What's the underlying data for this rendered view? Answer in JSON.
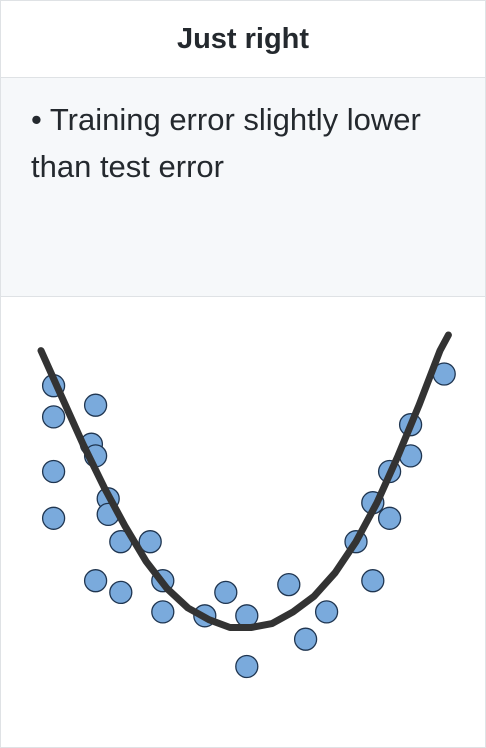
{
  "header": {
    "title": "Just right"
  },
  "description": {
    "bullet": "•",
    "text": "Training error slightly lower than test error"
  },
  "chart_data": {
    "type": "scatter",
    "title": "",
    "xlabel": "",
    "ylabel": "",
    "xlim": [
      0,
      10
    ],
    "ylim": [
      0,
      10
    ],
    "grid": false,
    "legend": "none",
    "point_color": "#7aaadc",
    "point_edge": "#1f3550",
    "curve_color": "#333333",
    "points": [
      {
        "x": 0.3,
        "y": 8.7
      },
      {
        "x": 0.3,
        "y": 7.9
      },
      {
        "x": 0.3,
        "y": 6.5
      },
      {
        "x": 0.3,
        "y": 5.3
      },
      {
        "x": 1.3,
        "y": 8.2
      },
      {
        "x": 1.2,
        "y": 7.2
      },
      {
        "x": 1.3,
        "y": 6.9
      },
      {
        "x": 1.6,
        "y": 5.8
      },
      {
        "x": 1.6,
        "y": 5.4
      },
      {
        "x": 1.3,
        "y": 3.7
      },
      {
        "x": 1.9,
        "y": 4.7
      },
      {
        "x": 1.9,
        "y": 3.4
      },
      {
        "x": 2.6,
        "y": 4.7
      },
      {
        "x": 2.9,
        "y": 3.7
      },
      {
        "x": 2.9,
        "y": 2.9
      },
      {
        "x": 3.9,
        "y": 2.8
      },
      {
        "x": 4.4,
        "y": 3.4
      },
      {
        "x": 4.9,
        "y": 2.8
      },
      {
        "x": 4.9,
        "y": 1.5
      },
      {
        "x": 5.9,
        "y": 3.6
      },
      {
        "x": 6.3,
        "y": 2.2
      },
      {
        "x": 6.8,
        "y": 2.9
      },
      {
        "x": 7.5,
        "y": 4.7
      },
      {
        "x": 7.9,
        "y": 5.7
      },
      {
        "x": 7.9,
        "y": 3.7
      },
      {
        "x": 8.3,
        "y": 6.5
      },
      {
        "x": 8.3,
        "y": 5.3
      },
      {
        "x": 8.8,
        "y": 7.7
      },
      {
        "x": 8.8,
        "y": 6.9
      },
      {
        "x": 9.6,
        "y": 9.0
      }
    ],
    "curve": [
      {
        "x": 0.0,
        "y": 9.6
      },
      {
        "x": 0.5,
        "y": 8.4
      },
      {
        "x": 1.0,
        "y": 7.2
      },
      {
        "x": 1.5,
        "y": 6.1
      },
      {
        "x": 2.0,
        "y": 5.1
      },
      {
        "x": 2.5,
        "y": 4.2
      },
      {
        "x": 3.0,
        "y": 3.5
      },
      {
        "x": 3.5,
        "y": 3.0
      },
      {
        "x": 4.0,
        "y": 2.7
      },
      {
        "x": 4.5,
        "y": 2.5
      },
      {
        "x": 5.0,
        "y": 2.5
      },
      {
        "x": 5.5,
        "y": 2.6
      },
      {
        "x": 6.0,
        "y": 2.9
      },
      {
        "x": 6.5,
        "y": 3.3
      },
      {
        "x": 7.0,
        "y": 3.9
      },
      {
        "x": 7.5,
        "y": 4.7
      },
      {
        "x": 8.0,
        "y": 5.7
      },
      {
        "x": 8.5,
        "y": 6.9
      },
      {
        "x": 9.0,
        "y": 8.2
      },
      {
        "x": 9.5,
        "y": 9.6
      },
      {
        "x": 9.7,
        "y": 10.0
      }
    ]
  }
}
